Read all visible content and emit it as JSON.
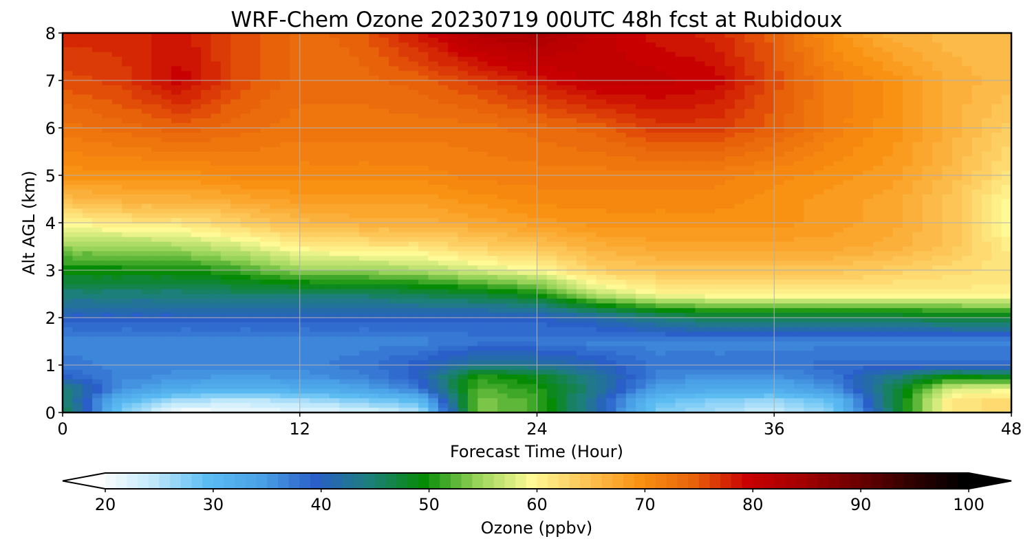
{
  "chart_data": {
    "type": "heatmap",
    "title": "WRF-Chem Ozone  20230719 00UTC 48h fcst at Rubidoux",
    "xlabel": "Forecast Time (Hour)",
    "ylabel": "Alt AGL (km)",
    "xlim": [
      0,
      48
    ],
    "ylim": [
      0,
      8
    ],
    "x_ticks": [
      "0",
      "12",
      "24",
      "36",
      "48"
    ],
    "y_ticks": [
      "0",
      "1",
      "2",
      "3",
      "4",
      "5",
      "6",
      "7",
      "8"
    ],
    "grid": true,
    "x": [
      0,
      3,
      6,
      9,
      12,
      15,
      18,
      21,
      24,
      27,
      30,
      33,
      36,
      39,
      42,
      45,
      48
    ],
    "y": [
      0,
      0.25,
      0.5,
      0.75,
      1,
      1.5,
      2,
      2.5,
      3,
      3.5,
      4,
      4.5,
      5,
      6,
      7,
      8
    ],
    "z_units": "ppbv",
    "z": [
      [
        48,
        28,
        20,
        21,
        22,
        23,
        25,
        54,
        52,
        42,
        28,
        26,
        24,
        28,
        47,
        62,
        63
      ],
      [
        46,
        31,
        26,
        25,
        26,
        28,
        30,
        54,
        52,
        42,
        30,
        28,
        27,
        30,
        47,
        62,
        63
      ],
      [
        46,
        36,
        33,
        32,
        33,
        34,
        38,
        53,
        51,
        44,
        35,
        33,
        33,
        36,
        47,
        58,
        59
      ],
      [
        40,
        37,
        36,
        35,
        36,
        37,
        40,
        51,
        49,
        43,
        37,
        36,
        36,
        38,
        44,
        50,
        49
      ],
      [
        38,
        37,
        37,
        37,
        37,
        38,
        40,
        44,
        43,
        41,
        38,
        38,
        38,
        39,
        39,
        39,
        39
      ],
      [
        37,
        37,
        37,
        37,
        37,
        37,
        37,
        38,
        38,
        37,
        37,
        37,
        37,
        37,
        37,
        37,
        37
      ],
      [
        40,
        40,
        40,
        40,
        40,
        40,
        40,
        40,
        40,
        42,
        45,
        47,
        47,
        47,
        47,
        48,
        48
      ],
      [
        45,
        45,
        45,
        46,
        46,
        46,
        47,
        48,
        50,
        57,
        60,
        61,
        61,
        61,
        61,
        61,
        61
      ],
      [
        50,
        50,
        50,
        52,
        55,
        55,
        56,
        58,
        60,
        64,
        65,
        65,
        65,
        65,
        64,
        63,
        62
      ],
      [
        55,
        55,
        56,
        58,
        61,
        62,
        62,
        64,
        65,
        67,
        68,
        68,
        68,
        68,
        67,
        65,
        61
      ],
      [
        60,
        62,
        62,
        64,
        66,
        67,
        67,
        68,
        69,
        70,
        70,
        70,
        70,
        69,
        68,
        65,
        59
      ],
      [
        66,
        67,
        67,
        68,
        69,
        69,
        69,
        70,
        71,
        71,
        71,
        71,
        70,
        69,
        68,
        65,
        60
      ],
      [
        70,
        70,
        70,
        71,
        71,
        71,
        71,
        72,
        72,
        72,
        72,
        72,
        71,
        70,
        69,
        66,
        62
      ],
      [
        73,
        74,
        75,
        74,
        73,
        73,
        73,
        73,
        74,
        75,
        77,
        77,
        75,
        72,
        70,
        67,
        64
      ],
      [
        76,
        77,
        80,
        76,
        74,
        74,
        75,
        77,
        79,
        81,
        81,
        80,
        76,
        72,
        70,
        67,
        66
      ],
      [
        78,
        78,
        79,
        76,
        74,
        75,
        79,
        83,
        84,
        81,
        79,
        78,
        75,
        70,
        67,
        66,
        66
      ]
    ],
    "colorbar": {
      "label": "Ozone  (ppbv)",
      "min": 20,
      "max": 100,
      "ticks": [
        "20",
        "30",
        "40",
        "50",
        "60",
        "70",
        "80",
        "90",
        "100"
      ],
      "extend": "both",
      "stops": [
        {
          "v": 20,
          "c": "#ffffff"
        },
        {
          "v": 25,
          "c": "#bfe8fb"
        },
        {
          "v": 30,
          "c": "#5bbcf2"
        },
        {
          "v": 35,
          "c": "#4aa0e6"
        },
        {
          "v": 40,
          "c": "#2a5ec8"
        },
        {
          "v": 45,
          "c": "#1d7f7a"
        },
        {
          "v": 50,
          "c": "#068b06"
        },
        {
          "v": 55,
          "c": "#98d45a"
        },
        {
          "v": 60,
          "c": "#fffa96"
        },
        {
          "v": 65,
          "c": "#fdc456"
        },
        {
          "v": 70,
          "c": "#f99212"
        },
        {
          "v": 75,
          "c": "#e8620a"
        },
        {
          "v": 80,
          "c": "#c80000"
        },
        {
          "v": 85,
          "c": "#a40000"
        },
        {
          "v": 90,
          "c": "#6e0000"
        },
        {
          "v": 95,
          "c": "#330000"
        },
        {
          "v": 100,
          "c": "#000000"
        }
      ],
      "under_color": "#ffffff",
      "over_color": "#000000"
    }
  }
}
